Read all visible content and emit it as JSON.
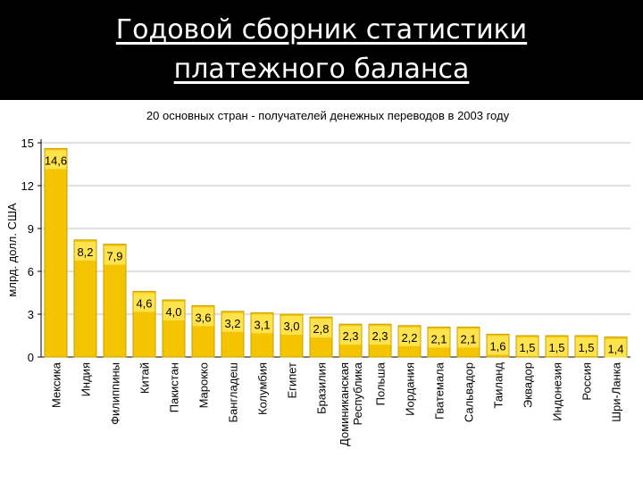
{
  "slide": {
    "title_line1": "Годовой сборник статистики",
    "title_line2": "платежного баланса"
  },
  "colors": {
    "background": "#000000",
    "panel": "#ffffff",
    "bar_fill": "#f5c400",
    "bar_stroke": "#c9a000",
    "label_box": "#ffe34d",
    "grid": "#bfbfbf"
  },
  "chart_data": {
    "type": "bar",
    "title": "20 основных стран - получателей денежных переводов в 2003 году",
    "xlabel": "",
    "ylabel": "млрд. долл. США",
    "ylim": [
      0,
      15
    ],
    "yticks": [
      0,
      3,
      6,
      9,
      12,
      15
    ],
    "grid": true,
    "categories": [
      "Мексика",
      "Индия",
      "Филиппины",
      "Китай",
      "Пакистан",
      "Марокко",
      "Бангладеш",
      "Колумбия",
      "Египет",
      "Бразилия",
      "Доминиканская Республика",
      "Польша",
      "Иордания",
      "Гватемала",
      "Сальвадор",
      "Таиланд",
      "Эквадор",
      "Индонезия",
      "Россия",
      "Шри-Ланка"
    ],
    "category_lines": [
      [
        "Мексика"
      ],
      [
        "Индия"
      ],
      [
        "Филиппины"
      ],
      [
        "Китай"
      ],
      [
        "Пакистан"
      ],
      [
        "Марокко"
      ],
      [
        "Бангладеш"
      ],
      [
        "Колумбия"
      ],
      [
        "Египет"
      ],
      [
        "Бразилия"
      ],
      [
        "Доминиканская",
        "Республика"
      ],
      [
        "Польша"
      ],
      [
        "Иордания"
      ],
      [
        "Гватемала"
      ],
      [
        "Сальвадор"
      ],
      [
        "Таиланд"
      ],
      [
        "Эквадор"
      ],
      [
        "Индонезия"
      ],
      [
        "Россия"
      ],
      [
        "Шри-Ланка"
      ]
    ],
    "values": [
      14.6,
      8.2,
      7.9,
      4.6,
      4.0,
      3.6,
      3.2,
      3.1,
      3.0,
      2.8,
      2.3,
      2.3,
      2.2,
      2.1,
      2.1,
      1.6,
      1.5,
      1.5,
      1.5,
      1.4
    ],
    "value_labels": [
      "14,6",
      "8,2",
      "7,9",
      "4,6",
      "4,0",
      "3,6",
      "3,2",
      "3,1",
      "3,0",
      "2,8",
      "2,3",
      "2,3",
      "2,2",
      "2,1",
      "2,1",
      "1,6",
      "1,5",
      "1,5",
      "1,5",
      "1,4"
    ]
  }
}
